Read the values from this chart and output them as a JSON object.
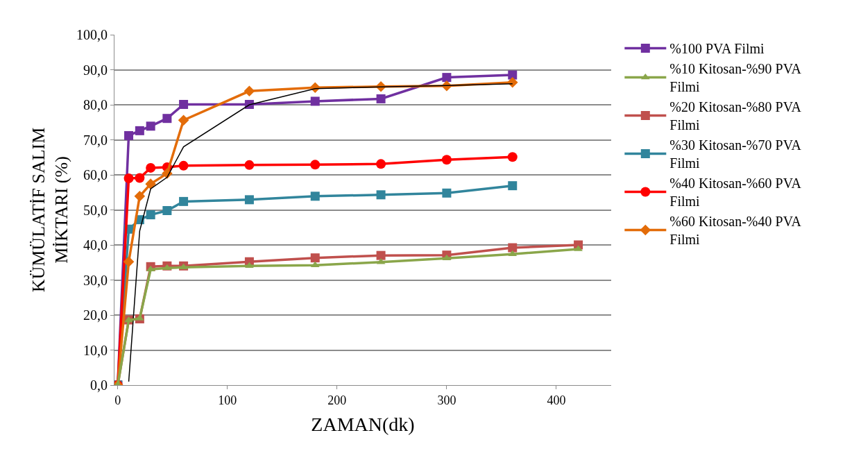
{
  "chart_data": {
    "type": "line",
    "xlabel": "ZAMAN(dk)",
    "ylabel": "KÜMÜLATİF SALIM MİKTARI (%)",
    "x": [
      0,
      10,
      20,
      30,
      45,
      60,
      120,
      180,
      240,
      300,
      360
    ],
    "xlim": [
      -3,
      450
    ],
    "xticks": [
      0,
      100,
      200,
      300,
      400
    ],
    "ylim": [
      0,
      100
    ],
    "yticks": [
      {
        "value": 0,
        "label": "0,0"
      },
      {
        "value": 10,
        "label": "10,0"
      },
      {
        "value": 20,
        "label": "20,0"
      },
      {
        "value": 30,
        "label": "30,0"
      },
      {
        "value": 40,
        "label": "40,0"
      },
      {
        "value": 50,
        "label": "50,0"
      },
      {
        "value": 60,
        "label": "60,0"
      },
      {
        "value": 70,
        "label": "70,0"
      },
      {
        "value": 80,
        "label": "80,0"
      },
      {
        "value": 90,
        "label": "90,0"
      },
      {
        "value": 100,
        "label": "100,0"
      }
    ],
    "grid": "y",
    "legend": "right",
    "series": [
      {
        "name": "%100 PVA Filmi",
        "color": "#7030a0",
        "marker": "square",
        "values": [
          0,
          71.2,
          72.6,
          73.9,
          76.1,
          80.1,
          80.1,
          81.0,
          81.7,
          87.8,
          88.5
        ]
      },
      {
        "name": "%10 Kitosan-%90 PVA Filmi",
        "color": "#8aa64a",
        "marker": "triangle",
        "x": [
          0,
          10,
          20,
          30,
          45,
          60,
          120,
          180,
          240,
          300,
          360,
          420
        ],
        "values": [
          0,
          18.5,
          19.0,
          33.0,
          33.4,
          33.6,
          34.0,
          34.2,
          35.1,
          36.2,
          37.4,
          38.8
        ]
      },
      {
        "name": "%20 Kitosan-%80 PVA Filmi",
        "color": "#c0504d",
        "marker": "square",
        "x": [
          0,
          10,
          20,
          30,
          45,
          60,
          120,
          180,
          240,
          300,
          360,
          420
        ],
        "values": [
          0,
          18.6,
          18.9,
          33.8,
          34.0,
          34.0,
          35.2,
          36.3,
          37.0,
          37.1,
          39.2,
          40.0
        ]
      },
      {
        "name": "%30 Kitosan-%70 PVA Filmi",
        "color": "#31859c",
        "marker": "square",
        "values": [
          0,
          44.5,
          47.2,
          48.6,
          49.8,
          52.4,
          52.9,
          53.9,
          54.3,
          54.8,
          56.9
        ]
      },
      {
        "name": "%40 Kitosan-%60 PVA Filmi",
        "color": "#ff0000",
        "marker": "circle",
        "values": [
          0,
          59.0,
          59.1,
          62.0,
          62.2,
          62.6,
          62.8,
          62.9,
          63.1,
          64.3,
          65.1
        ]
      },
      {
        "name": "%60 Kitosan-%40 PVA Filmi",
        "color": "#e36c09",
        "marker": "diamond",
        "values": [
          0,
          35.2,
          53.9,
          57.4,
          60.4,
          75.6,
          83.9,
          84.9,
          85.2,
          85.4,
          86.4
        ]
      },
      {
        "color": "#000000",
        "marker": "none",
        "x": [
          10,
          20,
          30,
          45,
          60,
          120,
          180,
          240,
          300,
          360
        ],
        "values": [
          1,
          44,
          56,
          59.3,
          68,
          80,
          84.6,
          85.1,
          85.5,
          86.0
        ]
      }
    ]
  }
}
